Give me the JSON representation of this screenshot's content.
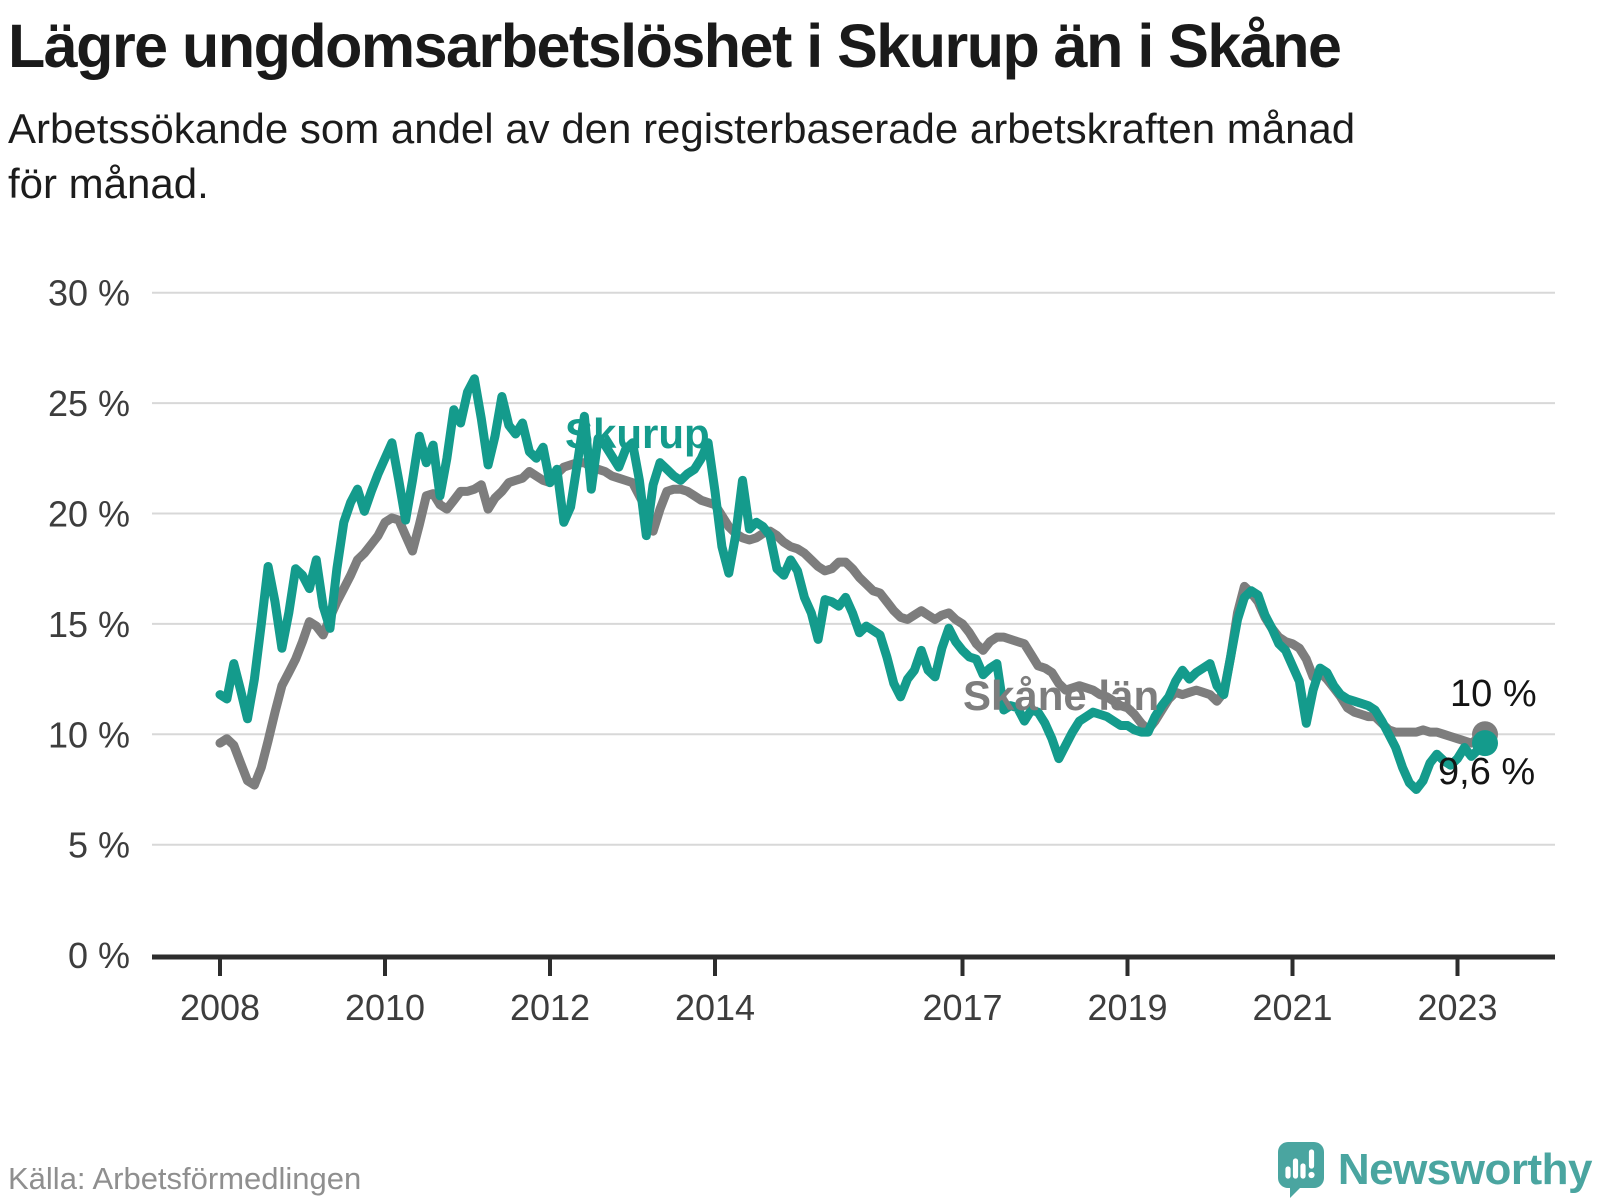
{
  "title": "Lägre ungdomsarbetslöshet i Skurup än i Skåne",
  "subtitle_lines": [
    "Arbetssökande som andel av den registerbaserade arbetskraften månad",
    "för månad."
  ],
  "source": "Källa: Arbetsförmedlingen",
  "branding": {
    "name": "Newsworthy",
    "icon": "newsworthy-speech-bubble-chart-icon",
    "color": "#4aa5a0"
  },
  "colors": {
    "skurup": "#149b8c",
    "skane": "#7d7d7d",
    "grid": "#d8d8d8",
    "axis": "#2d2d2d",
    "tick_label": "#3d3d3d",
    "end_label": "#141414"
  },
  "chart_data": {
    "type": "line",
    "title": "Lägre ungdomsarbetslöshet i Skurup än i Skåne",
    "xlabel": "",
    "ylabel": "Arbetssökande som andel av den registerbaserade arbetskraften",
    "unit": "%",
    "frequency": "monthly",
    "x_start": "2008-01",
    "x_end": "2023-05",
    "ylim": [
      0,
      30
    ],
    "grid": "horizontal",
    "legend_position": "inline-labels",
    "y_ticks": [
      {
        "value": 0,
        "label": "0 %"
      },
      {
        "value": 5,
        "label": "5 %"
      },
      {
        "value": 10,
        "label": "10 %"
      },
      {
        "value": 15,
        "label": "15 %"
      },
      {
        "value": 20,
        "label": "20 %"
      },
      {
        "value": 25,
        "label": "25 %"
      },
      {
        "value": 30,
        "label": "30 %"
      }
    ],
    "x_ticks": [
      {
        "year": 2008,
        "label": "2008"
      },
      {
        "year": 2010,
        "label": "2010"
      },
      {
        "year": 2012,
        "label": "2012"
      },
      {
        "year": 2014,
        "label": "2014"
      },
      {
        "year": 2017,
        "label": "2017"
      },
      {
        "year": 2019,
        "label": "2019"
      },
      {
        "year": 2021,
        "label": "2021"
      },
      {
        "year": 2023,
        "label": "2023"
      }
    ],
    "series": [
      {
        "name": "Skurup",
        "color": "#149b8c",
        "end_label": "9,6 %",
        "end_value": 9.6,
        "values": [
          11.8,
          11.6,
          13.2,
          12.0,
          10.7,
          12.5,
          15.0,
          17.6,
          16.0,
          13.9,
          15.5,
          17.5,
          17.2,
          16.6,
          17.9,
          15.8,
          14.8,
          17.5,
          19.6,
          20.5,
          21.1,
          20.1,
          21.0,
          21.8,
          22.5,
          23.2,
          21.5,
          19.7,
          21.5,
          23.5,
          22.3,
          23.1,
          20.8,
          22.5,
          24.7,
          24.1,
          25.5,
          26.1,
          24.3,
          22.2,
          23.5,
          25.3,
          24.0,
          23.6,
          24.1,
          22.8,
          22.5,
          23.0,
          21.4,
          22.0,
          19.6,
          20.3,
          22.3,
          24.4,
          21.1,
          23.4,
          23.1,
          22.6,
          22.1,
          22.9,
          23.2,
          21.5,
          19.0,
          21.3,
          22.3,
          22.0,
          21.7,
          21.5,
          21.8,
          22.0,
          22.5,
          23.2,
          21.0,
          18.5,
          17.3,
          19.0,
          21.5,
          19.3,
          19.6,
          19.4,
          19.0,
          17.5,
          17.2,
          17.9,
          17.4,
          16.2,
          15.5,
          14.3,
          16.1,
          16.0,
          15.8,
          16.2,
          15.5,
          14.6,
          14.9,
          14.7,
          14.5,
          13.5,
          12.3,
          11.7,
          12.5,
          12.9,
          13.8,
          12.9,
          12.6,
          13.9,
          14.8,
          14.2,
          13.8,
          13.5,
          13.4,
          12.7,
          13.0,
          13.2,
          11.1,
          11.3,
          11.2,
          10.6,
          11.1,
          11.0,
          10.5,
          9.8,
          8.9,
          9.5,
          10.1,
          10.6,
          10.8,
          11.0,
          10.9,
          10.8,
          10.6,
          10.4,
          10.4,
          10.2,
          10.1,
          10.1,
          10.8,
          11.3,
          11.7,
          12.4,
          12.9,
          12.5,
          12.8,
          13.0,
          13.2,
          12.2,
          11.8,
          13.5,
          15.2,
          16.2,
          16.5,
          16.3,
          15.4,
          14.8,
          14.1,
          13.8,
          13.1,
          12.4,
          10.5,
          12.0,
          13.0,
          12.8,
          12.2,
          11.8,
          11.6,
          11.5,
          11.4,
          11.3,
          11.1,
          10.6,
          10.0,
          9.4,
          8.5,
          7.8,
          7.5,
          7.9,
          8.7,
          9.1,
          8.8,
          8.6,
          8.9,
          9.4,
          9.0,
          9.3,
          9.6
        ]
      },
      {
        "name": "Skåne län",
        "color": "#7d7d7d",
        "end_label": "10 %",
        "end_value": 10.0,
        "values": [
          9.6,
          9.8,
          9.5,
          8.7,
          7.9,
          7.7,
          8.5,
          9.7,
          11.0,
          12.2,
          12.8,
          13.4,
          14.2,
          15.1,
          14.9,
          14.5,
          15.3,
          16.0,
          16.6,
          17.2,
          17.9,
          18.2,
          18.6,
          19.0,
          19.6,
          19.8,
          19.7,
          19.0,
          18.3,
          19.5,
          20.8,
          20.9,
          20.4,
          20.2,
          20.6,
          21.0,
          21.0,
          21.1,
          21.3,
          20.2,
          20.7,
          21.0,
          21.4,
          21.5,
          21.6,
          21.9,
          21.7,
          21.5,
          21.4,
          21.8,
          22.1,
          22.2,
          22.3,
          22.3,
          22.1,
          22.0,
          21.9,
          21.7,
          21.6,
          21.5,
          21.4,
          20.8,
          20.2,
          19.2,
          20.2,
          21.0,
          21.1,
          21.1,
          21.0,
          20.8,
          20.6,
          20.5,
          20.4,
          19.9,
          19.4,
          19.1,
          18.9,
          18.8,
          18.9,
          19.1,
          19.2,
          19.0,
          18.7,
          18.5,
          18.4,
          18.2,
          17.9,
          17.6,
          17.4,
          17.5,
          17.8,
          17.8,
          17.5,
          17.1,
          16.8,
          16.5,
          16.4,
          16.0,
          15.6,
          15.3,
          15.2,
          15.4,
          15.6,
          15.4,
          15.2,
          15.4,
          15.5,
          15.2,
          15.0,
          14.6,
          14.1,
          13.8,
          14.2,
          14.4,
          14.4,
          14.3,
          14.2,
          14.1,
          13.6,
          13.1,
          13.0,
          12.8,
          12.3,
          12.0,
          12.1,
          12.2,
          12.1,
          12.0,
          11.8,
          11.7,
          11.5,
          11.3,
          11.2,
          10.9,
          10.5,
          10.2,
          10.6,
          11.1,
          11.6,
          11.9,
          11.8,
          11.9,
          12.0,
          11.9,
          11.8,
          11.5,
          11.9,
          13.5,
          15.5,
          16.7,
          16.4,
          16.0,
          15.3,
          14.8,
          14.4,
          14.2,
          14.1,
          13.9,
          13.4,
          12.6,
          12.8,
          12.5,
          12.1,
          11.7,
          11.2,
          11.0,
          10.9,
          10.8,
          10.8,
          10.5,
          10.2,
          10.1,
          10.1,
          10.1,
          10.1,
          10.2,
          10.1,
          10.1,
          10.0,
          9.9,
          9.8,
          9.7,
          9.6,
          9.8,
          10.0
        ]
      }
    ]
  }
}
